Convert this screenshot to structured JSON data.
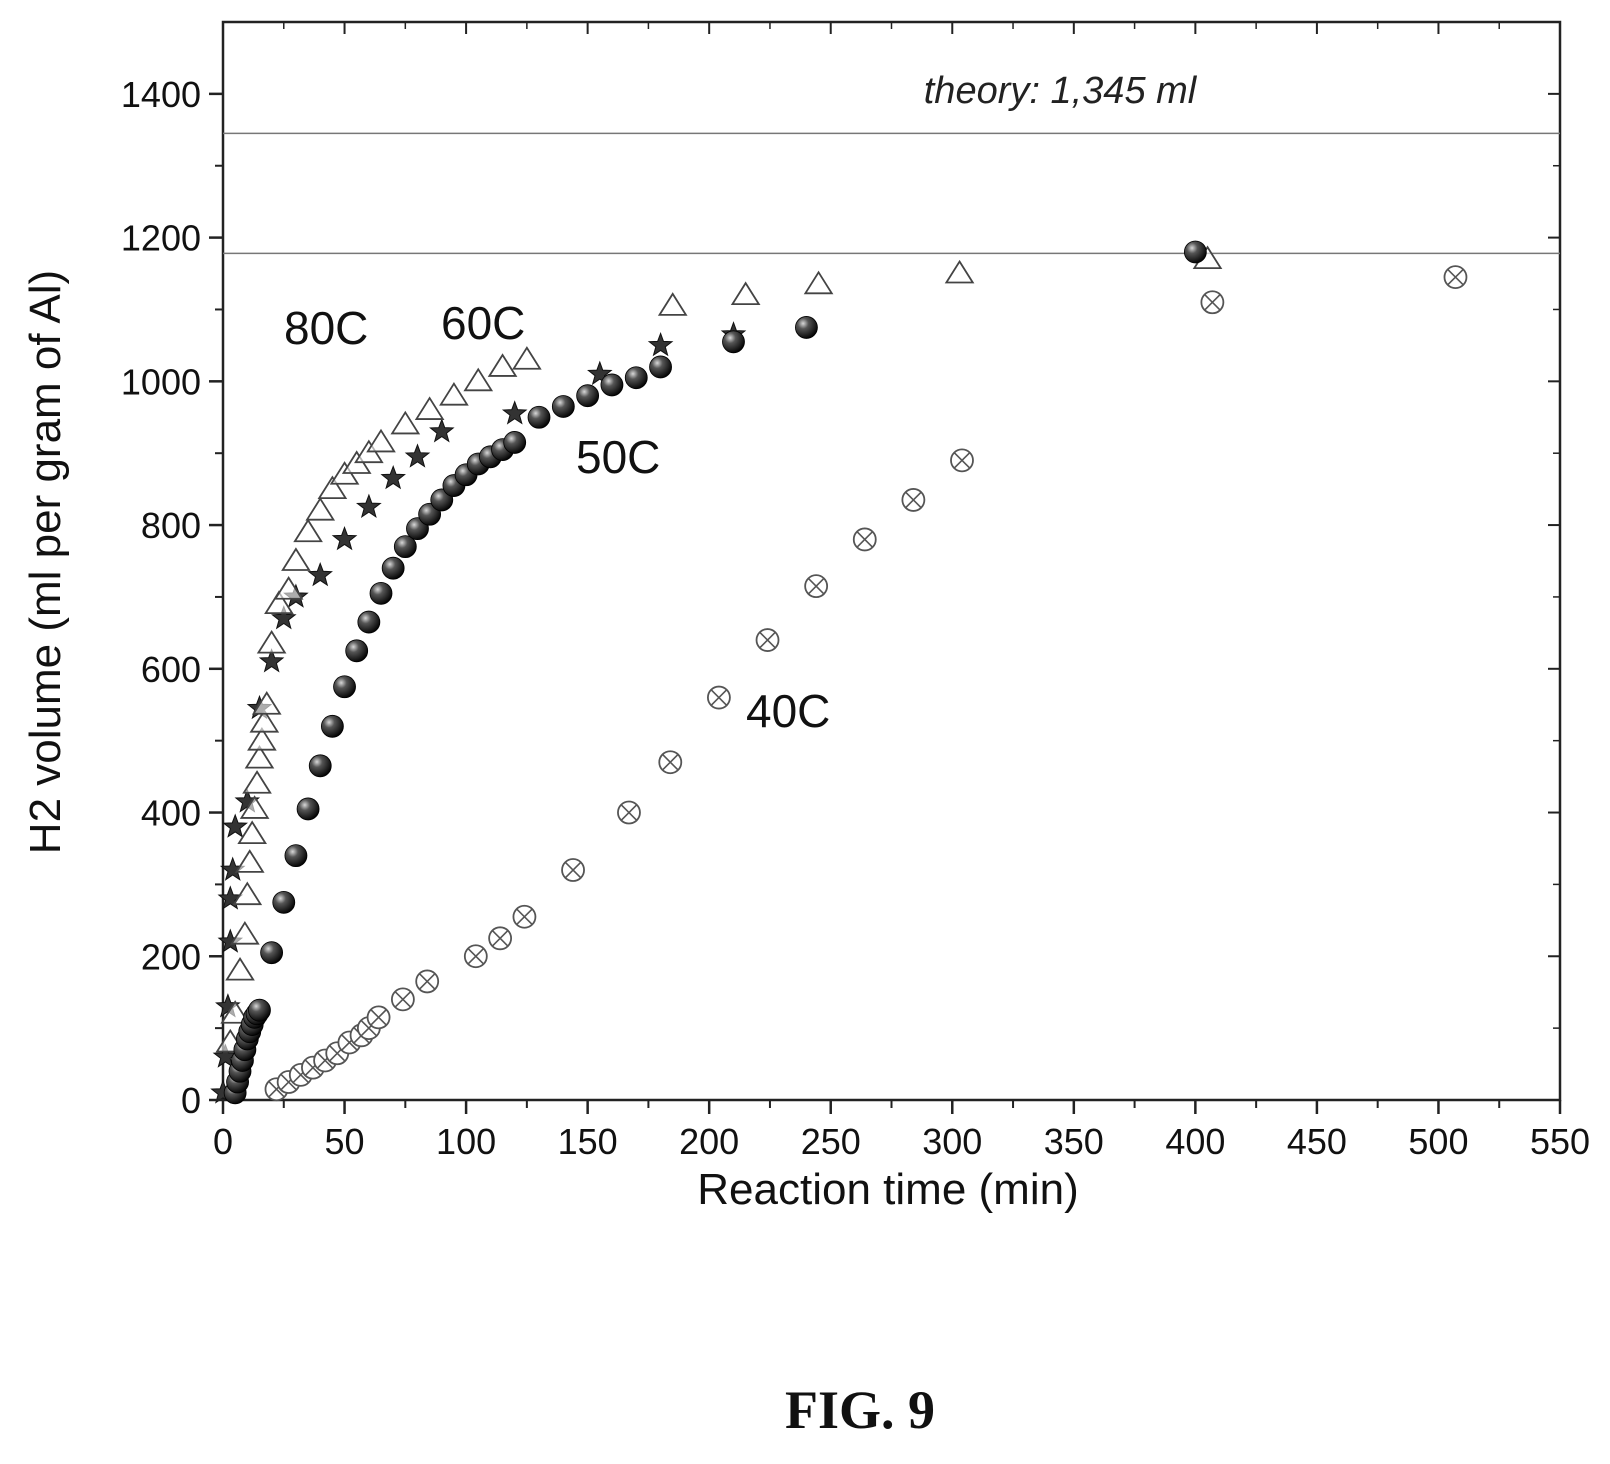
{
  "chart_data": {
    "type": "scatter",
    "title": "",
    "xlabel": "Reaction time (min)",
    "ylabel": "H2 volume (ml per gram of Al)",
    "xlim": [
      0,
      550
    ],
    "ylim": [
      0,
      1500
    ],
    "xticks": [
      "0",
      "50",
      "100",
      "150",
      "200",
      "250",
      "300",
      "350",
      "400",
      "450",
      "500",
      "550"
    ],
    "yticks": [
      "0",
      "200",
      "400",
      "600",
      "800",
      "1000",
      "1200",
      "1400"
    ],
    "grid": false,
    "legend": "none",
    "reference_lines": [
      {
        "y": 1345,
        "label": "theory: 1,345 ml"
      },
      {
        "y": 1178,
        "label": ""
      }
    ],
    "series": [
      {
        "name": "80C",
        "marker": "star",
        "x": [
          0,
          1,
          2,
          3,
          3,
          4,
          5,
          10,
          15,
          20,
          25,
          30,
          40,
          50,
          60,
          70,
          80,
          90,
          120,
          155,
          180,
          210
        ],
        "y": [
          10,
          60,
          130,
          220,
          280,
          320,
          380,
          415,
          545,
          610,
          670,
          700,
          730,
          780,
          825,
          865,
          895,
          930,
          955,
          1010,
          1050,
          1065
        ]
      },
      {
        "name": "60C",
        "marker": "triangle-open",
        "x": [
          3,
          5,
          7,
          9,
          10,
          11,
          12,
          13,
          14,
          15,
          16,
          17,
          18,
          20,
          23,
          27,
          30,
          35,
          40,
          45,
          50,
          55,
          60,
          65,
          75,
          85,
          95,
          105,
          115,
          125,
          185,
          215,
          245,
          303,
          405
        ],
        "y": [
          80,
          120,
          180,
          230,
          285,
          330,
          370,
          405,
          440,
          475,
          500,
          525,
          550,
          635,
          690,
          710,
          750,
          790,
          820,
          850,
          870,
          885,
          900,
          915,
          940,
          960,
          980,
          1000,
          1020,
          1030,
          1105,
          1120,
          1135,
          1150,
          1170
        ]
      },
      {
        "name": "50C",
        "marker": "sphere",
        "x": [
          5,
          6,
          7,
          8,
          9,
          10,
          11,
          12,
          13,
          14,
          15,
          20,
          25,
          30,
          35,
          40,
          45,
          50,
          55,
          60,
          65,
          70,
          75,
          80,
          85,
          90,
          95,
          100,
          105,
          110,
          115,
          120,
          130,
          140,
          150,
          160,
          170,
          180,
          210,
          240,
          400
        ],
        "y": [
          10,
          25,
          40,
          55,
          70,
          85,
          95,
          105,
          115,
          120,
          125,
          205,
          275,
          340,
          405,
          465,
          520,
          575,
          625,
          665,
          705,
          740,
          770,
          795,
          815,
          835,
          855,
          870,
          885,
          895,
          905,
          915,
          950,
          965,
          980,
          995,
          1005,
          1020,
          1055,
          1075,
          1180
        ]
      },
      {
        "name": "40C",
        "marker": "circle-cross",
        "x": [
          22,
          27,
          32,
          37,
          42,
          47,
          52,
          57,
          60,
          64,
          74,
          84,
          104,
          114,
          124,
          144,
          167,
          184,
          204,
          224,
          244,
          264,
          284,
          304,
          407,
          507
        ],
        "y": [
          15,
          25,
          35,
          45,
          55,
          65,
          80,
          90,
          100,
          115,
          140,
          165,
          200,
          225,
          255,
          320,
          400,
          470,
          560,
          640,
          715,
          780,
          835,
          890,
          1110,
          1145
        ]
      }
    ]
  },
  "annotations": {
    "theory": "theory: 1,345 ml",
    "label_80c": "80C",
    "label_60c": "60C",
    "label_50c": "50C",
    "label_40c": "40C"
  },
  "caption": "FIG. 9"
}
